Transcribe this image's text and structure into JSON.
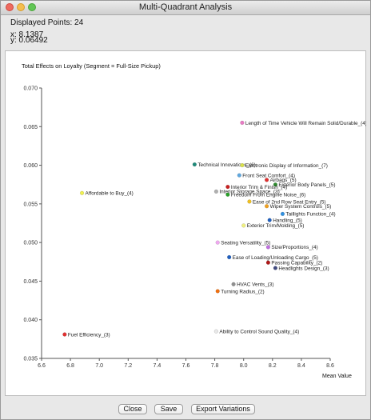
{
  "window": {
    "title": "Multi-Quadrant Analysis"
  },
  "info": {
    "displayed_points": "Displayed Points: 24",
    "x_readout": "x: 8.1387",
    "y_readout": "y: 0.06492"
  },
  "buttons": {
    "close": "Close",
    "save": "Save",
    "export": "Export Variations"
  },
  "chart_data": {
    "type": "scatter",
    "title": "Total Effects on Loyalty (Segment = Full-Size Pickup)",
    "xlabel": "Mean Value",
    "ylabel": "",
    "xlim": [
      6.6,
      8.6
    ],
    "ylim": [
      0.035,
      0.07
    ],
    "xticks": [
      "6.6",
      "6.8",
      "7.0",
      "7.2",
      "7.4",
      "7.6",
      "7.8",
      "8.0",
      "8.2",
      "8.4",
      "8.6"
    ],
    "yticks": [
      "0.035",
      "0.040",
      "0.045",
      "0.050",
      "0.055",
      "0.060",
      "0.065",
      "0.070"
    ],
    "grid": false,
    "points": [
      {
        "label": "Length of Time Vehicle Will Remain Solid/Durable_(4)",
        "x": 7.99,
        "y": 0.0655,
        "color": "#e87cc4"
      },
      {
        "label": "Technical Innovations_(6)",
        "x": 7.66,
        "y": 0.0601,
        "color": "#1f8a7a"
      },
      {
        "label": "Electronic Display of Information_(7)",
        "x": 7.99,
        "y": 0.06,
        "color": "#d8e04c"
      },
      {
        "label": "Front Seat Comfort_(4)",
        "x": 7.97,
        "y": 0.0587,
        "color": "#5fa8e0"
      },
      {
        "label": "Airbags_(5)",
        "x": 8.16,
        "y": 0.0581,
        "color": "#e03030"
      },
      {
        "label": "Exterior Body Panels_(5)",
        "x": 8.22,
        "y": 0.0575,
        "color": "#2e8b2e"
      },
      {
        "label": "Interior Trim & Finish_(4)",
        "x": 7.89,
        "y": 0.0572,
        "color": "#c82020"
      },
      {
        "label": "Interior Storage Space_(3)",
        "x": 7.81,
        "y": 0.0566,
        "color": "#b0b0b0"
      },
      {
        "label": "Freedom From Engine Noise_(6)",
        "x": 7.89,
        "y": 0.0562,
        "color": "#2aa02a"
      },
      {
        "label": "Affordable to Buy_(4)",
        "x": 6.88,
        "y": 0.0564,
        "color": "#f0f050"
      },
      {
        "label": "Ease of 2nd Row Seat Entry_(5)",
        "x": 8.04,
        "y": 0.0553,
        "color": "#f0c020"
      },
      {
        "label": "Wiper System Controls_(5)",
        "x": 8.16,
        "y": 0.0547,
        "color": "#f0a020"
      },
      {
        "label": "Taillights Function_(4)",
        "x": 8.27,
        "y": 0.0537,
        "color": "#3090e0"
      },
      {
        "label": "Handling_(5)",
        "x": 8.18,
        "y": 0.0529,
        "color": "#2060c0"
      },
      {
        "label": "Exterior Trim/Molding_(5)",
        "x": 8.0,
        "y": 0.0522,
        "color": "#f0f080"
      },
      {
        "label": "Seating Versatility_(5)",
        "x": 7.82,
        "y": 0.05,
        "color": "#f0a8f0"
      },
      {
        "label": "Size/Proportions_(4)",
        "x": 8.17,
        "y": 0.0494,
        "color": "#c070e0"
      },
      {
        "label": "Ease of Loading/Unloading Cargo_(5)",
        "x": 7.9,
        "y": 0.0481,
        "color": "#1f5fc0"
      },
      {
        "label": "Passing Capability_(2)",
        "x": 8.17,
        "y": 0.0474,
        "color": "#b01818"
      },
      {
        "label": "Headlights Design_(3)",
        "x": 8.22,
        "y": 0.0467,
        "color": "#404a80"
      },
      {
        "label": "HVAC Vents_(3)",
        "x": 7.93,
        "y": 0.0446,
        "color": "#909090"
      },
      {
        "label": "Turning Radius_(2)",
        "x": 7.82,
        "y": 0.0437,
        "color": "#f07010"
      },
      {
        "label": "Fuel Efficiency_(3)",
        "x": 6.76,
        "y": 0.0381,
        "color": "#e03030"
      },
      {
        "label": "Ability to Control Sound Quality_(4)",
        "x": 7.81,
        "y": 0.0385,
        "color": "#e8e8e8"
      }
    ]
  }
}
